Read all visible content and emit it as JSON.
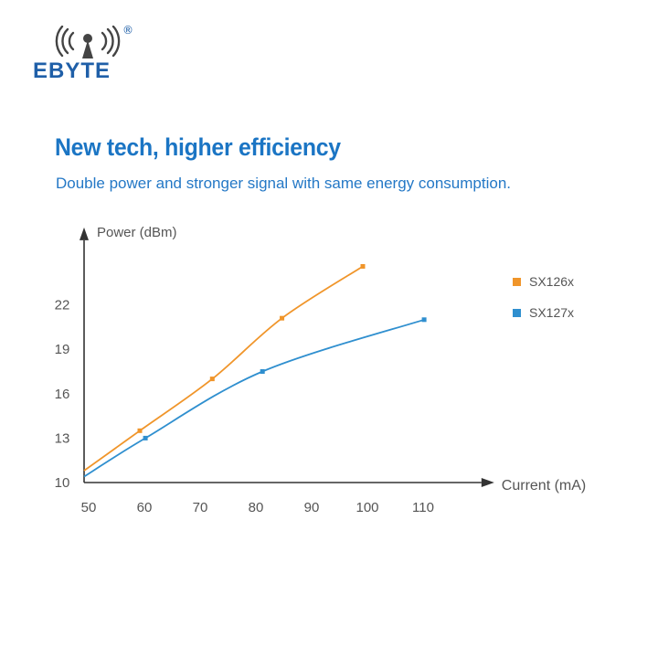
{
  "brand": {
    "name": "EBYTE",
    "registered_mark": "®",
    "color": "#1f5fa8"
  },
  "headline": "New tech, higher efficiency",
  "subheadline": "Double power and stronger signal with same energy consumption.",
  "chart_data": {
    "type": "line",
    "title": "",
    "xlabel": "Current (mA)",
    "ylabel": "Power (dBm)",
    "x_ticks": [
      50,
      60,
      70,
      80,
      90,
      100,
      110
    ],
    "y_ticks": [
      10,
      13,
      16,
      19,
      22
    ],
    "xlim": [
      50,
      118
    ],
    "ylim": [
      10,
      25.5
    ],
    "grid": false,
    "legend_position": "right",
    "series": [
      {
        "name": "SX126x",
        "color": "#f0952a",
        "x": [
          60,
          73,
          85.5,
          100
        ],
        "y": [
          13.5,
          17,
          21.1,
          24.6
        ],
        "curve_start": [
          50,
          10.8
        ]
      },
      {
        "name": "SX127x",
        "color": "#2f8fcf",
        "x": [
          61,
          82,
          111
        ],
        "y": [
          13,
          17.5,
          21
        ],
        "curve_start": [
          50,
          10.4
        ]
      }
    ]
  }
}
